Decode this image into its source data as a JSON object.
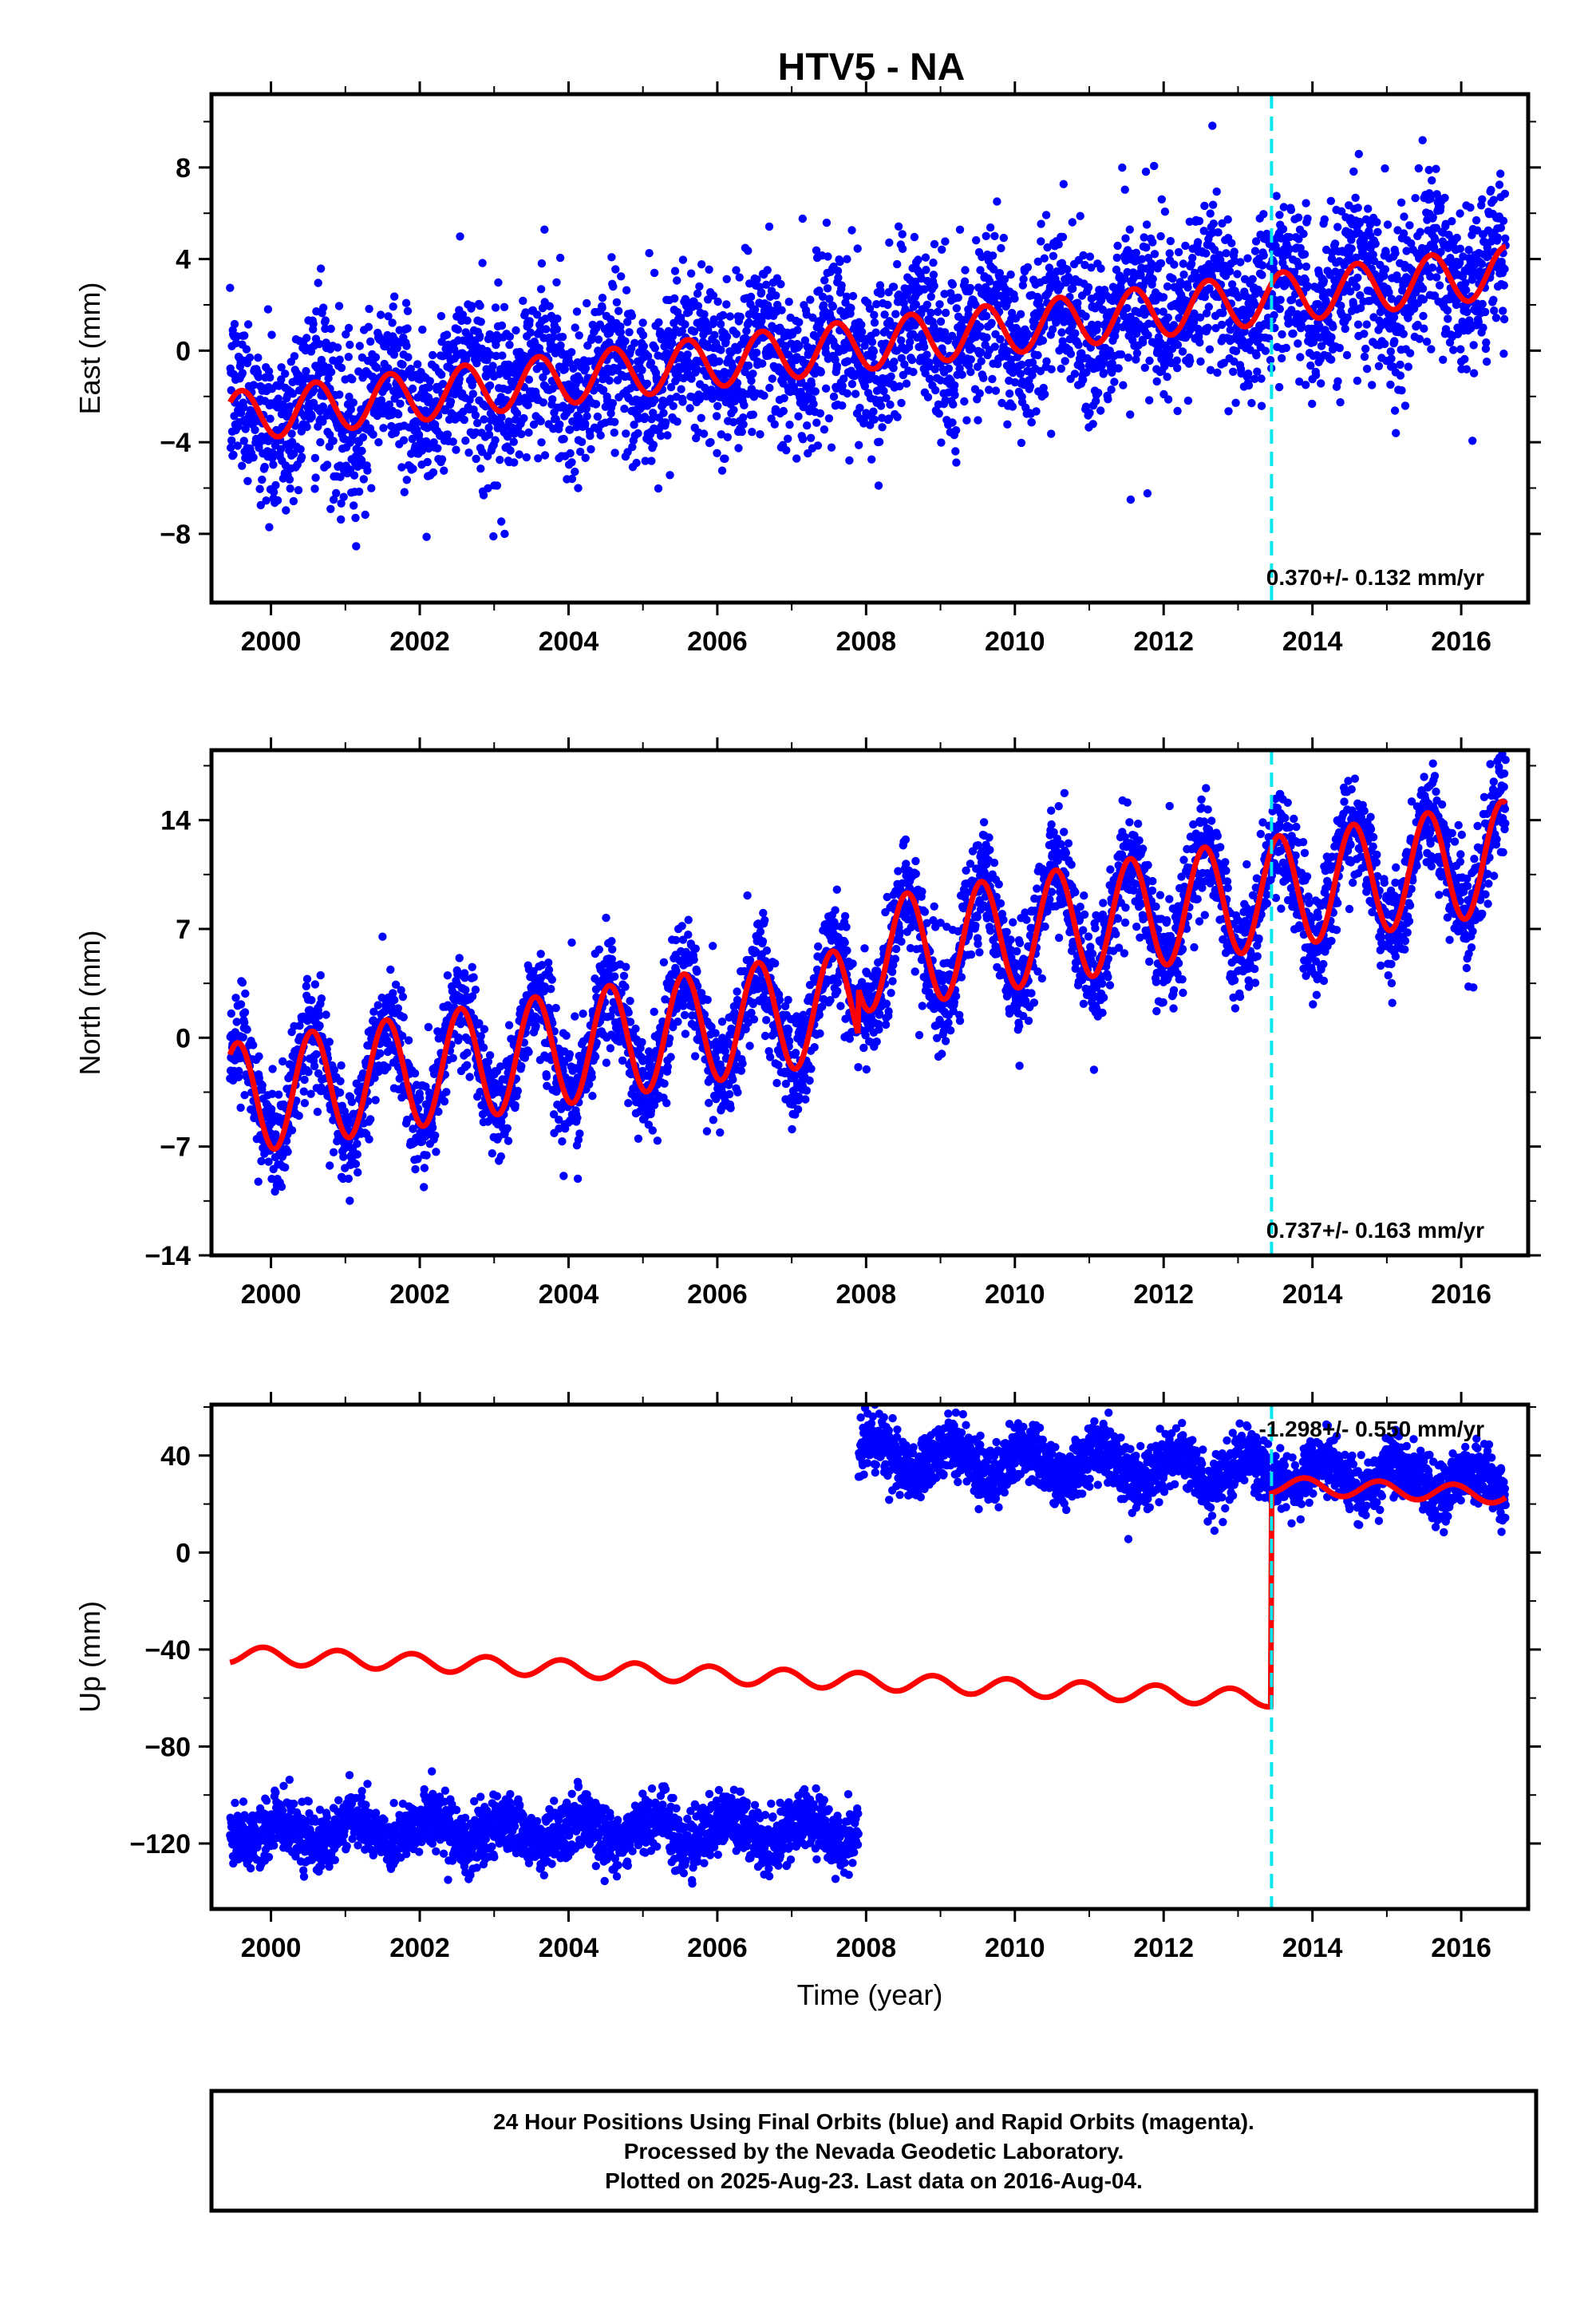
{
  "title": "HTV5 - NA",
  "colors": {
    "observations": "#0000ff",
    "model": "#ff0000",
    "event": "#00e5ee",
    "frame": "#000000"
  },
  "chart_data": [
    {
      "type": "scatter",
      "ylabel": "East (mm)",
      "xlabel": "",
      "xlim": [
        1999.2,
        2016.9
      ],
      "ylim": [
        -11,
        11.2
      ],
      "x_ticks": [
        2000,
        2002,
        2004,
        2006,
        2008,
        2010,
        2012,
        2014,
        2016
      ],
      "y_ticks": [
        -8,
        -4,
        0,
        4,
        8
      ],
      "rate_label": "0.370+/- 0.132 mm/yr",
      "event_x": 2013.45,
      "model": {
        "start": 1999.45,
        "end": 2016.6,
        "offset": -2.9,
        "slope": 0.37,
        "amplitude": 1.1,
        "phase_year": 1999.6,
        "dip_amplitude": 0.0,
        "step_at": null,
        "step": 0
      },
      "scatter": {
        "noise": 1.8,
        "density_points": 4200,
        "gap": null
      }
    },
    {
      "type": "scatter",
      "ylabel": "North (mm)",
      "xlabel": "",
      "xlim": [
        1999.2,
        2016.9
      ],
      "ylim": [
        -14,
        18.5
      ],
      "x_ticks": [
        2000,
        2002,
        2004,
        2006,
        2008,
        2010,
        2012,
        2014,
        2016
      ],
      "y_ticks": [
        -14,
        -7,
        0,
        7,
        14
      ],
      "rate_label": "0.737+/- 0.163 mm/yr",
      "event_x": 2013.45,
      "model": {
        "start": 1999.45,
        "end": 2016.6,
        "offset": -4.0,
        "slope": 0.737,
        "amplitude": 3.6,
        "phase_year": 1999.55,
        "dip_amplitude": 0.0,
        "step_at": 2007.9,
        "step": 3.0
      },
      "scatter": {
        "noise": 1.7,
        "density_points": 4200,
        "gap": null
      }
    },
    {
      "type": "scatter",
      "ylabel": "Up (mm)",
      "xlabel": "Time (year)",
      "xlim": [
        1999.2,
        2016.9
      ],
      "ylim": [
        -147,
        61
      ],
      "x_ticks": [
        2000,
        2002,
        2004,
        2006,
        2008,
        2010,
        2012,
        2014,
        2016
      ],
      "y_ticks": [
        -120,
        -80,
        -40,
        0,
        40
      ],
      "rate_label": "-1.298+/- 0.550 mm/yr",
      "event_x": 2013.45,
      "model": {
        "start": 1999.45,
        "end": 2016.6,
        "offset": -42,
        "slope": -1.298,
        "amplitude": 3.5,
        "phase_year": 1999.9,
        "dip_amplitude": 0.0,
        "step_at": 2013.45,
        "step": 88
      },
      "scatter": {
        "noise": 6,
        "density_points": 4400,
        "segments": [
          {
            "start": 1999.45,
            "end": 2007.9,
            "base": -115,
            "slope": 0.0,
            "amplitude": 5
          },
          {
            "start": 2007.9,
            "end": 2016.6,
            "base": 40,
            "slope": -1.3,
            "amplitude": 6
          }
        ]
      }
    }
  ],
  "footer": {
    "line1": "24 Hour Positions Using Final Orbits (blue) and Rapid Orbits (magenta).",
    "line2": "Processed by the Nevada Geodetic Laboratory.",
    "line3": "Plotted on 2025-Aug-23. Last data on 2016-Aug-04."
  }
}
